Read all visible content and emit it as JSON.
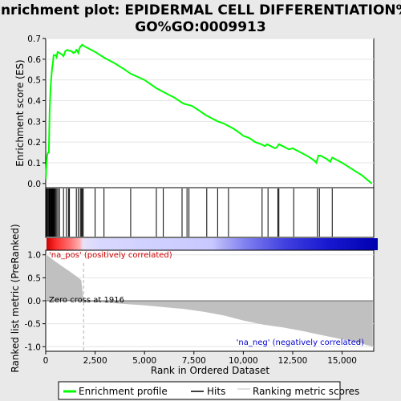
{
  "chart_data": {
    "type": "line",
    "title_line1": "Enrichment plot: EPIDERMAL CELL DIFFERENTIATION%",
    "title_line2": "GO%GO:0009913",
    "top_panel": {
      "ylabel": "Enrichment score (ES)",
      "ylim": [
        -0.02,
        0.7
      ],
      "yticks": [
        0.0,
        0.1,
        0.2,
        0.3,
        0.4,
        0.5,
        0.6,
        0.7
      ],
      "ytick_labels": [
        "0.0",
        "0.1",
        "0.2",
        "0.3",
        "0.4",
        "0.5",
        "0.6",
        "0.7"
      ],
      "series": [
        {
          "name": "Enrichment profile",
          "color": "#00ff00",
          "x": [
            0,
            40,
            80,
            120,
            160,
            200,
            240,
            270,
            300,
            330,
            360,
            400,
            450,
            500,
            550,
            600,
            700,
            800,
            900,
            1000,
            1100,
            1200,
            1300,
            1400,
            1500,
            1550,
            1600,
            1650,
            1700,
            1750,
            1800,
            1850,
            1900,
            2000,
            2500,
            3000,
            3500,
            4000,
            4300,
            5000,
            5600,
            6000,
            6500,
            6900,
            7000,
            7200,
            7400,
            7800,
            8100,
            8400,
            8700,
            9000,
            9200,
            9500,
            9800,
            10000,
            10300,
            10600,
            10900,
            11000,
            11100,
            11200,
            11400,
            11600,
            11700,
            11800,
            12000,
            12300,
            12500,
            12700,
            13000,
            13300,
            13600,
            13700,
            13800,
            13900,
            14200,
            14400,
            14500,
            14700,
            15000,
            15500,
            16000,
            16500
          ],
          "y": [
            0.02,
            0.1,
            0.14,
            0.15,
            0.15,
            0.35,
            0.45,
            0.5,
            0.53,
            0.56,
            0.58,
            0.62,
            0.62,
            0.62,
            0.61,
            0.635,
            0.63,
            0.625,
            0.615,
            0.64,
            0.645,
            0.64,
            0.64,
            0.63,
            0.635,
            0.645,
            0.64,
            0.63,
            0.65,
            0.66,
            0.665,
            0.67,
            0.665,
            0.66,
            0.635,
            0.605,
            0.58,
            0.55,
            0.53,
            0.5,
            0.46,
            0.44,
            0.415,
            0.39,
            0.385,
            0.38,
            0.375,
            0.35,
            0.33,
            0.315,
            0.3,
            0.29,
            0.28,
            0.265,
            0.245,
            0.23,
            0.22,
            0.2,
            0.19,
            0.185,
            0.18,
            0.19,
            0.18,
            0.17,
            0.175,
            0.19,
            0.18,
            0.165,
            0.17,
            0.16,
            0.145,
            0.13,
            0.11,
            0.1,
            0.135,
            0.135,
            0.12,
            0.105,
            0.125,
            0.115,
            0.1,
            0.07,
            0.04,
            0.0
          ]
        }
      ]
    },
    "hits": [
      20,
      50,
      90,
      130,
      170,
      200,
      230,
      260,
      290,
      310,
      330,
      350,
      380,
      400,
      430,
      460,
      500,
      560,
      620,
      700,
      900,
      1050,
      1150,
      1200,
      1550,
      1650,
      1750,
      1800,
      1850,
      1900,
      2500,
      2950,
      4300,
      5600,
      5950,
      6900,
      7150,
      7250,
      8150,
      8700,
      9250,
      10950,
      11250,
      11750,
      11800,
      12550,
      13750,
      13850,
      14500
    ],
    "bottom_panel": {
      "ylabel": "Ranked list metric (PreRanked)",
      "xlabel": "Rank in Ordered Dataset",
      "ylim": [
        -1.1,
        1.1
      ],
      "yticks": [
        -1.0,
        -0.5,
        0.0,
        0.5,
        1.0
      ],
      "ytick_labels": [
        "-1.0",
        "-0.5",
        "0.0",
        "0.5",
        "1.0"
      ],
      "xlim": [
        0,
        16600
      ],
      "xticks": [
        0,
        2500,
        5000,
        7500,
        10000,
        12500,
        15000
      ],
      "xtick_labels": [
        "0",
        "2,500",
        "5,000",
        "7,500",
        "10,000",
        "12,500",
        "15,000"
      ],
      "metric_x": [
        0,
        100,
        200,
        400,
        600,
        800,
        1000,
        1200,
        1400,
        1600,
        1800,
        1916,
        2000,
        3000,
        4000,
        5000,
        6000,
        7000,
        8000,
        9000,
        10000,
        11000,
        12000,
        13000,
        14000,
        15000,
        15500,
        16000,
        16200,
        16400,
        16550
      ],
      "metric_y": [
        1.0,
        0.98,
        0.95,
        0.88,
        0.82,
        0.76,
        0.7,
        0.64,
        0.58,
        0.52,
        0.45,
        0.0,
        -0.02,
        -0.04,
        -0.07,
        -0.1,
        -0.14,
        -0.18,
        -0.24,
        -0.32,
        -0.43,
        -0.52,
        -0.58,
        -0.66,
        -0.75,
        -0.84,
        -0.88,
        -0.93,
        -0.96,
        -0.98,
        -1.0
      ],
      "zero_cross_label": "Zero cross at 1916",
      "pos_label": "'na_pos' (positively correlated)",
      "neg_label": "'na_neg' (negatively correlated)",
      "zero_cross": 1916
    },
    "legend": {
      "placement": "bottom",
      "entries": [
        "Enrichment profile",
        "Hits",
        "Ranking metric scores"
      ]
    },
    "colors": {
      "enrichment": "#00ff00",
      "hits": "#000000",
      "metric": "#c0c0c0",
      "pos_label": "#cc0000",
      "neg_label": "#0000cc",
      "bar_red": "#ff0000",
      "bar_blue": "#0000ff"
    }
  }
}
